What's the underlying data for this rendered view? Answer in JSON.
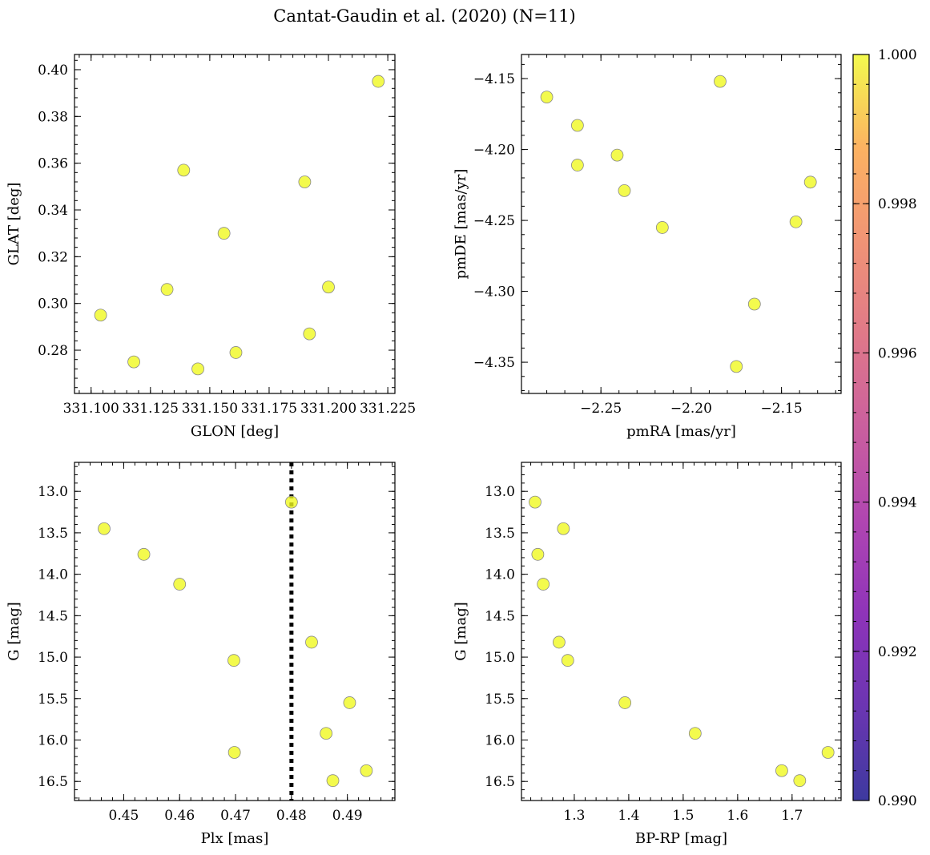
{
  "figure": {
    "title": "Cantat-Gaudin et al. (2020) (N=11)"
  },
  "colorbar": {
    "cmap": "plasma",
    "range": [
      0.99,
      1.0
    ],
    "ticks": [
      0.99,
      0.992,
      0.994,
      0.996,
      0.998,
      1.0
    ],
    "tick_labels": [
      "0.990",
      "0.992",
      "0.994",
      "0.996",
      "0.998",
      "1.000"
    ]
  },
  "chart_data": [
    {
      "type": "scatter",
      "xlabel": "GLON [deg]",
      "ylabel": "GLAT [deg]",
      "xlim": [
        331.093,
        331.228
      ],
      "ylim": [
        0.2615,
        0.4065
      ],
      "xticks": [
        331.1,
        331.125,
        331.15,
        331.175,
        331.2,
        331.225
      ],
      "xtick_labels": [
        "331.100",
        "331.125",
        "331.150",
        "331.175",
        "331.200",
        "331.225"
      ],
      "yticks": [
        0.28,
        0.3,
        0.32,
        0.34,
        0.36,
        0.38,
        0.4
      ],
      "ytick_labels": [
        "0.28",
        "0.30",
        "0.32",
        "0.34",
        "0.36",
        "0.38",
        "0.40"
      ],
      "x": [
        331.104,
        331.118,
        331.132,
        331.139,
        331.145,
        331.156,
        331.161,
        331.19,
        331.192,
        331.2,
        331.221
      ],
      "y": [
        0.295,
        0.275,
        0.306,
        0.357,
        0.272,
        0.33,
        0.279,
        0.352,
        0.287,
        0.307,
        0.395
      ],
      "color_values": [
        1,
        1,
        1,
        1,
        1,
        1,
        1,
        1,
        1,
        1,
        1
      ]
    },
    {
      "type": "scatter",
      "xlabel": "pmRA [mas/yr]",
      "ylabel": "pmDE [mas/yr]",
      "xlim": [
        -2.294,
        -2.117
      ],
      "ylim": [
        -4.372,
        -4.133
      ],
      "xticks": [
        -2.25,
        -2.2,
        -2.15
      ],
      "xtick_labels": [
        "−2.25",
        "−2.20",
        "−2.15"
      ],
      "yticks": [
        -4.35,
        -4.3,
        -4.25,
        -4.2,
        -4.15
      ],
      "ytick_labels": [
        "−4.35",
        "−4.30",
        "−4.25",
        "−4.20",
        "−4.15"
      ],
      "x": [
        -2.28,
        -2.263,
        -2.263,
        -2.241,
        -2.237,
        -2.216,
        -2.184,
        -2.175,
        -2.165,
        -2.142,
        -2.134
      ],
      "y": [
        -4.163,
        -4.183,
        -4.211,
        -4.204,
        -4.229,
        -4.255,
        -4.152,
        -4.353,
        -4.309,
        -4.251,
        -4.223
      ],
      "color_values": [
        1,
        1,
        1,
        1,
        1,
        1,
        1,
        1,
        1,
        1,
        1
      ]
    },
    {
      "type": "scatter",
      "xlabel": "Plx [mas]",
      "ylabel": "G [mag]",
      "xlim": [
        0.4412,
        0.4985
      ],
      "ylim": [
        16.73,
        12.65
      ],
      "y_inverted": true,
      "xticks": [
        0.45,
        0.46,
        0.47,
        0.48,
        0.49
      ],
      "xtick_labels": [
        "0.45",
        "0.46",
        "0.47",
        "0.48",
        "0.49"
      ],
      "yticks": [
        13.0,
        13.5,
        14.0,
        14.5,
        15.0,
        15.5,
        16.0,
        16.5
      ],
      "ytick_labels": [
        "13.0",
        "13.5",
        "14.0",
        "14.5",
        "15.0",
        "15.5",
        "16.0",
        "16.5"
      ],
      "x": [
        0.4465,
        0.4536,
        0.46,
        0.4697,
        0.4698,
        0.48,
        0.4836,
        0.4862,
        0.4874,
        0.4904,
        0.4934
      ],
      "y": [
        13.45,
        13.76,
        14.12,
        15.04,
        16.15,
        13.13,
        14.82,
        15.92,
        16.49,
        15.55,
        16.37
      ],
      "color_values": [
        1,
        1,
        1,
        1,
        1,
        1,
        1,
        1,
        1,
        1,
        1
      ],
      "vline_x": 0.48,
      "vline_style": "dotted"
    },
    {
      "type": "scatter",
      "xlabel": "BP-RP [mag]",
      "ylabel": "G [mag]",
      "xlim": [
        1.203,
        1.79
      ],
      "ylim": [
        16.73,
        12.65
      ],
      "y_inverted": true,
      "xticks": [
        1.3,
        1.4,
        1.5,
        1.6,
        1.7
      ],
      "xtick_labels": [
        "1.3",
        "1.4",
        "1.5",
        "1.6",
        "1.7"
      ],
      "yticks": [
        13.0,
        13.5,
        14.0,
        14.5,
        15.0,
        15.5,
        16.0,
        16.5
      ],
      "ytick_labels": [
        "13.0",
        "13.5",
        "14.0",
        "14.5",
        "15.0",
        "15.5",
        "16.0",
        "16.5"
      ],
      "x": [
        1.228,
        1.233,
        1.243,
        1.272,
        1.28,
        1.288,
        1.393,
        1.522,
        1.681,
        1.714,
        1.766
      ],
      "y": [
        13.13,
        13.76,
        14.12,
        14.82,
        13.45,
        15.04,
        15.55,
        15.92,
        16.37,
        16.49,
        16.15
      ],
      "color_values": [
        1,
        1,
        1,
        1,
        1,
        1,
        1,
        1,
        1,
        1,
        1
      ]
    }
  ]
}
